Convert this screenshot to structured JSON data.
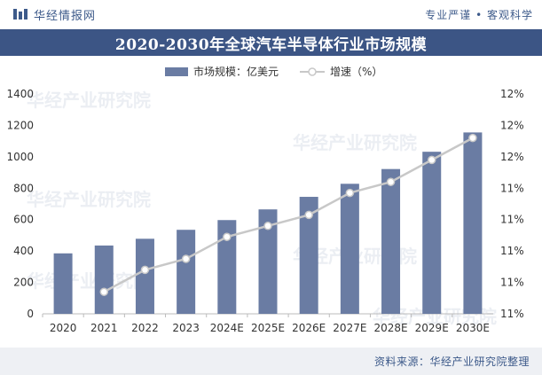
{
  "header": {
    "brand": "华经情报网",
    "slogan": "专业严谨 • 客观科学"
  },
  "title": "2020-2030年全球汽车半导体行业市场规模",
  "footer": {
    "source": "资料来源：华经产业研究院整理"
  },
  "watermark": "华经产业研究院",
  "colors": {
    "bar": "#6a7ca3",
    "line": "#c8c8c8",
    "band": "#3c5585",
    "brand": "#3d5a8a"
  },
  "chart_data": {
    "type": "bar",
    "title": "2020-2030年全球汽车半导体行业市场规模",
    "categories": [
      "2020",
      "2021",
      "2022",
      "2023",
      "2024E",
      "2025E",
      "2026E",
      "2027E",
      "2028E",
      "2029E",
      "2030E"
    ],
    "series": [
      {
        "name": "市场规模：亿美元",
        "type": "bar",
        "axis": "left",
        "values": [
          385,
          435,
          478,
          535,
          597,
          665,
          745,
          828,
          922,
          1032,
          1155
        ]
      },
      {
        "name": "增速（%）",
        "type": "line",
        "axis": "right",
        "values": [
          null,
          10.7,
          10.9,
          11.0,
          11.2,
          11.3,
          11.4,
          11.6,
          11.7,
          11.9,
          12.1
        ]
      }
    ],
    "y_left": {
      "min": 0,
      "max": 1400,
      "step": 200,
      "ticks": [
        "0",
        "200",
        "400",
        "600",
        "800",
        "1000",
        "1200",
        "1400"
      ]
    },
    "y_right": {
      "min": 10.5,
      "max": 12.5,
      "ticks": [
        "11%",
        "11%",
        "11%",
        "11%",
        "11%",
        "12%",
        "12%",
        "12%"
      ]
    },
    "legend": [
      "市场规模：亿美元",
      "增速（%）"
    ],
    "legend_position": "top-center"
  }
}
